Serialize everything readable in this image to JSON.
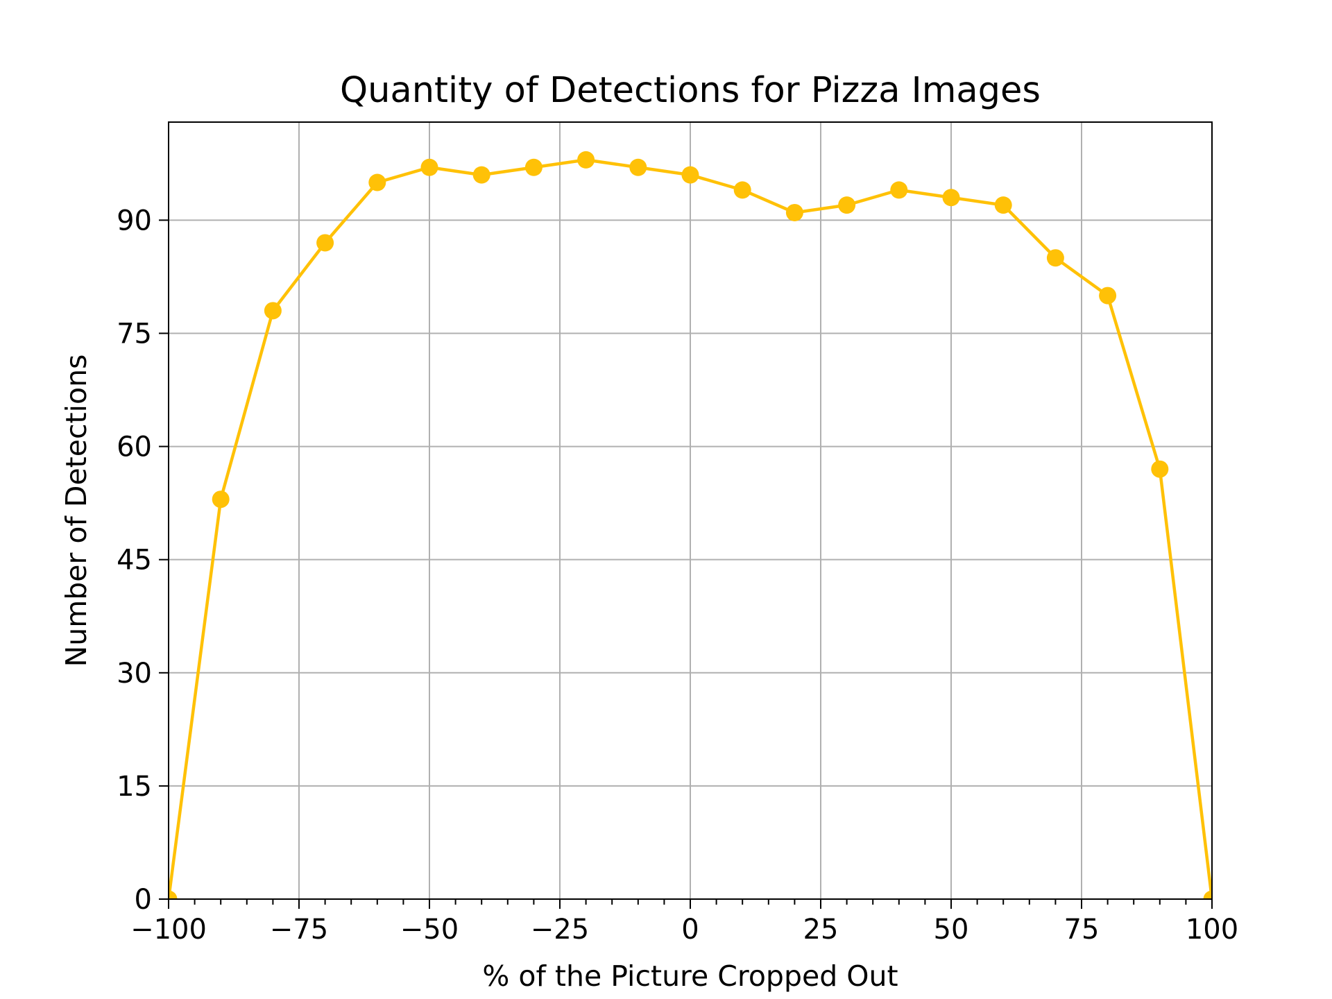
{
  "chart_data": {
    "type": "line",
    "title": "Quantity of Detections for Pizza Images",
    "xlabel": "% of the Picture Cropped Out",
    "ylabel": "Number of Detections",
    "xlim": [
      -100,
      100
    ],
    "ylim": [
      0,
      103
    ],
    "xticks": [
      -100,
      -75,
      -50,
      -25,
      0,
      25,
      50,
      75,
      100
    ],
    "xtick_labels": [
      "−100",
      "−75",
      "−50",
      "−25",
      "0",
      "25",
      "50",
      "75",
      "100"
    ],
    "xticks_minor_step": 5,
    "yticks": [
      0,
      15,
      30,
      45,
      60,
      75,
      90
    ],
    "ytick_labels": [
      "0",
      "15",
      "30",
      "45",
      "60",
      "75",
      "90"
    ],
    "grid": true,
    "series": [
      {
        "color": "#FFC107",
        "marker": "circle",
        "x": [
          -100,
          -90,
          -80,
          -70,
          -60,
          -50,
          -40,
          -30,
          -20,
          -10,
          0,
          10,
          20,
          30,
          40,
          50,
          60,
          70,
          80,
          90,
          100
        ],
        "y": [
          0,
          53,
          78,
          87,
          95,
          97,
          96,
          97,
          98,
          97,
          96,
          94,
          91,
          92,
          94,
          93,
          92,
          85,
          80,
          57,
          0
        ]
      }
    ]
  }
}
